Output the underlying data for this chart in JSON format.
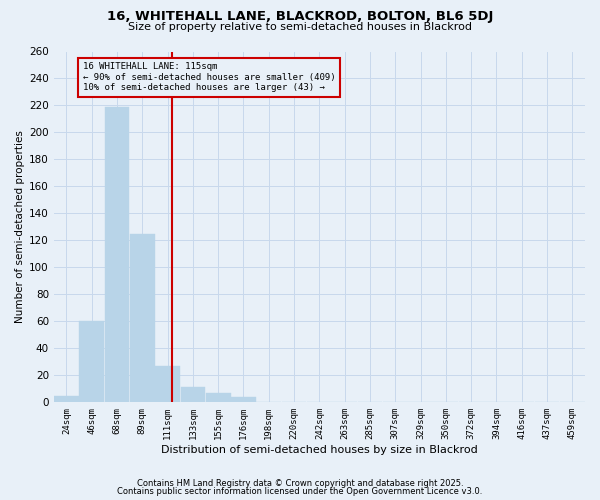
{
  "title": "16, WHITEHALL LANE, BLACKROD, BOLTON, BL6 5DJ",
  "subtitle": "Size of property relative to semi-detached houses in Blackrod",
  "xlabel": "Distribution of semi-detached houses by size in Blackrod",
  "ylabel": "Number of semi-detached properties",
  "bar_edges": [
    13,
    35,
    57,
    79,
    101,
    123,
    145,
    167,
    189,
    211,
    233,
    255,
    277,
    299,
    321,
    343,
    365,
    387,
    409,
    431,
    453,
    475
  ],
  "bar_values": [
    5,
    60,
    219,
    125,
    27,
    11,
    7,
    4,
    0,
    0,
    0,
    0,
    0,
    0,
    0,
    0,
    0,
    0,
    0,
    0,
    0
  ],
  "tick_labels": [
    "24sqm",
    "46sqm",
    "68sqm",
    "89sqm",
    "111sqm",
    "133sqm",
    "155sqm",
    "176sqm",
    "198sqm",
    "220sqm",
    "242sqm",
    "263sqm",
    "285sqm",
    "307sqm",
    "329sqm",
    "350sqm",
    "372sqm",
    "394sqm",
    "416sqm",
    "437sqm",
    "459sqm"
  ],
  "bar_color": "#b8d4e8",
  "bar_edgecolor": "#b8d4e8",
  "grid_color": "#c8d8ec",
  "background_color": "#e8f0f8",
  "vline_color": "#cc0000",
  "annotation_title": "16 WHITEHALL LANE: 115sqm",
  "annotation_line1": "← 90% of semi-detached houses are smaller (409)",
  "annotation_line2": "10% of semi-detached houses are larger (43) →",
  "annotation_box_color": "#cc0000",
  "ylim": [
    0,
    260
  ],
  "yticks": [
    0,
    20,
    40,
    60,
    80,
    100,
    120,
    140,
    160,
    180,
    200,
    220,
    240,
    260
  ],
  "footer1": "Contains HM Land Registry data © Crown copyright and database right 2025.",
  "footer2": "Contains public sector information licensed under the Open Government Licence v3.0.",
  "bin_width": 22
}
